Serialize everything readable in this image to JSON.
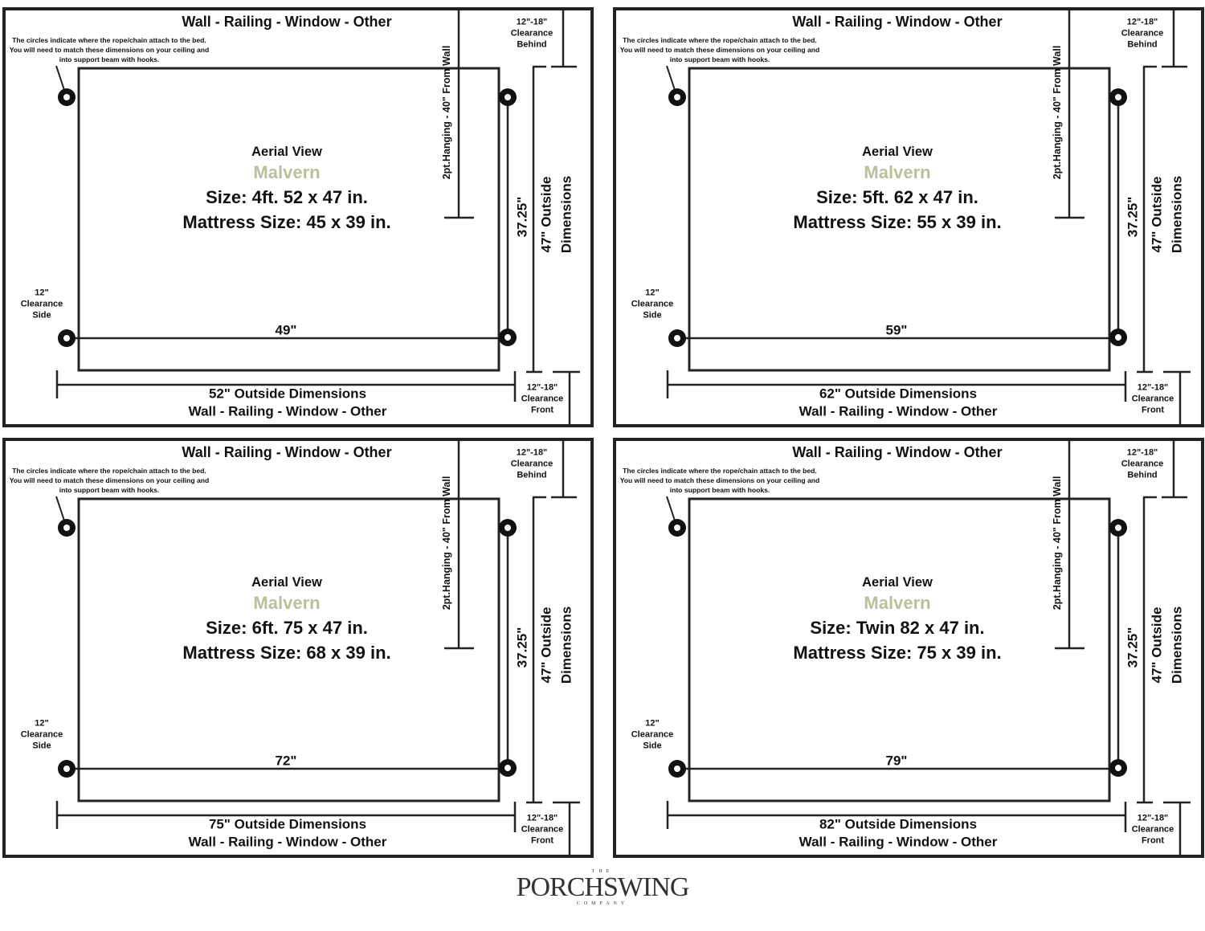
{
  "common": {
    "wall_label": "Wall - Railing - Window - Other",
    "note": "The circles indicate where the rope/chain attach to the bed. You will need to match these dimensions on your ceiling and into support beam with hooks.",
    "clearance_behind": [
      "12\"-18\"",
      "Clearance",
      "Behind"
    ],
    "clearance_front": [
      "12\"-18\"",
      "Clearance",
      "Front"
    ],
    "clearance_side": [
      "12\"",
      "Clearance",
      "Side"
    ],
    "hanging_label": "2pt.Hanging - 40\" From Wall",
    "aerial_view": "Aerial View",
    "model": "Malvern",
    "hook_depth": "37.25\"",
    "outside_depth": [
      "47\" Outside",
      "Dimensions"
    ]
  },
  "panels": [
    {
      "size": "Size: 4ft. 52 x 47 in.",
      "mattress": "Mattress Size: 45 x 39 in.",
      "hook_width": "49\"",
      "outside_width": "52\" Outside Dimensions"
    },
    {
      "size": "Size: 5ft. 62 x 47 in.",
      "mattress": "Mattress Size: 55 x 39 in.",
      "hook_width": "59\"",
      "outside_width": "62\" Outside Dimensions"
    },
    {
      "size": "Size: 6ft. 75 x 47 in.",
      "mattress": "Mattress Size: 68 x 39 in.",
      "hook_width": "72\"",
      "outside_width": "75\" Outside Dimensions"
    },
    {
      "size": "Size: Twin 82 x 47 in.",
      "mattress": "Mattress Size: 75 x 39 in.",
      "hook_width": "79\"",
      "outside_width": "82\" Outside Dimensions"
    }
  ],
  "colors": {
    "model_accent": "#b9c19b",
    "line": "#232323"
  },
  "logo": {
    "top": "THE",
    "name": "PORCHSWING",
    "bottom": "COMPANY"
  }
}
